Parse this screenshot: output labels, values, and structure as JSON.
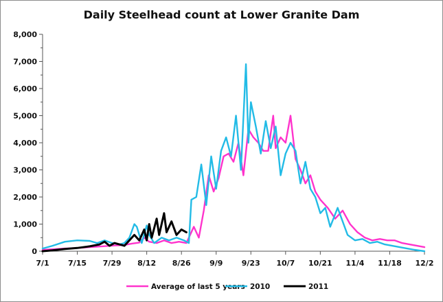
{
  "chart_data": {
    "type": "line",
    "title": "Daily Steelhead count at Lower Granite Dam",
    "xlabel": "",
    "ylabel": "",
    "x_tick_labels": [
      "7/1",
      "7/15",
      "7/29",
      "8/12",
      "8/26",
      "9/9",
      "9/23",
      "10/7",
      "10/21",
      "11/4",
      "11/18",
      "12/2"
    ],
    "xlim": [
      "7/1",
      "12/2"
    ],
    "ylim": [
      0,
      8000
    ],
    "y_ticks": [
      0,
      1000,
      2000,
      3000,
      4000,
      5000,
      6000,
      7000,
      8000
    ],
    "y_tick_labels": [
      "0",
      "1,000",
      "2,000",
      "3,000",
      "4,000",
      "5,000",
      "6,000",
      "7,000",
      "8,000"
    ],
    "grid": false,
    "legend": "bottom",
    "series": [
      {
        "name": "Average of last 5 years",
        "color": "#ff33cc",
        "points": [
          [
            "7/1",
            50
          ],
          [
            "7/5",
            70
          ],
          [
            "7/10",
            100
          ],
          [
            "7/15",
            120
          ],
          [
            "7/20",
            150
          ],
          [
            "7/25",
            180
          ],
          [
            "7/30",
            210
          ],
          [
            "8/3",
            230
          ],
          [
            "8/6",
            280
          ],
          [
            "8/9",
            320
          ],
          [
            "8/11",
            500
          ],
          [
            "8/13",
            350
          ],
          [
            "8/16",
            300
          ],
          [
            "8/19",
            400
          ],
          [
            "8/22",
            300
          ],
          [
            "8/25",
            350
          ],
          [
            "8/28",
            300
          ],
          [
            "8/31",
            900
          ],
          [
            "9/2",
            500
          ],
          [
            "9/4",
            1500
          ],
          [
            "9/6",
            2800
          ],
          [
            "9/8",
            2200
          ],
          [
            "9/10",
            2700
          ],
          [
            "9/12",
            3500
          ],
          [
            "9/14",
            3600
          ],
          [
            "9/16",
            3300
          ],
          [
            "9/18",
            4000
          ],
          [
            "9/20",
            2800
          ],
          [
            "9/22",
            4500
          ],
          [
            "9/24",
            4200
          ],
          [
            "9/26",
            4000
          ],
          [
            "9/28",
            3700
          ],
          [
            "9/30",
            3700
          ],
          [
            "10/2",
            5000
          ],
          [
            "10/3",
            3800
          ],
          [
            "10/5",
            4200
          ],
          [
            "10/7",
            4000
          ],
          [
            "10/9",
            5000
          ],
          [
            "10/11",
            3400
          ],
          [
            "10/13",
            3000
          ],
          [
            "10/15",
            2500
          ],
          [
            "10/17",
            2800
          ],
          [
            "10/19",
            2200
          ],
          [
            "10/21",
            1900
          ],
          [
            "10/24",
            1600
          ],
          [
            "10/27",
            1200
          ],
          [
            "10/30",
            1500
          ],
          [
            "11/2",
            1000
          ],
          [
            "11/5",
            700
          ],
          [
            "11/8",
            500
          ],
          [
            "11/11",
            400
          ],
          [
            "11/14",
            450
          ],
          [
            "11/17",
            400
          ],
          [
            "11/20",
            400
          ],
          [
            "11/23",
            300
          ],
          [
            "11/26",
            250
          ],
          [
            "11/29",
            200
          ],
          [
            "12/2",
            150
          ]
        ]
      },
      {
        "name": "2010",
        "color": "#22bbe6",
        "points": [
          [
            "7/1",
            100
          ],
          [
            "7/5",
            200
          ],
          [
            "7/10",
            350
          ],
          [
            "7/15",
            400
          ],
          [
            "7/20",
            380
          ],
          [
            "7/23",
            300
          ],
          [
            "7/26",
            400
          ],
          [
            "7/29",
            300
          ],
          [
            "8/1",
            250
          ],
          [
            "8/3",
            300
          ],
          [
            "8/5",
            500
          ],
          [
            "8/7",
            1000
          ],
          [
            "8/8",
            900
          ],
          [
            "8/10",
            300
          ],
          [
            "8/12",
            950
          ],
          [
            "8/13",
            600
          ],
          [
            "8/15",
            300
          ],
          [
            "8/18",
            500
          ],
          [
            "8/21",
            400
          ],
          [
            "8/24",
            500
          ],
          [
            "8/27",
            400
          ],
          [
            "8/29",
            300
          ],
          [
            "8/30",
            1900
          ],
          [
            "9/1",
            2000
          ],
          [
            "9/3",
            3200
          ],
          [
            "9/5",
            1700
          ],
          [
            "9/7",
            3500
          ],
          [
            "9/9",
            2300
          ],
          [
            "9/11",
            3700
          ],
          [
            "9/13",
            4200
          ],
          [
            "9/15",
            3500
          ],
          [
            "9/17",
            5000
          ],
          [
            "9/19",
            3000
          ],
          [
            "9/21",
            6900
          ],
          [
            "9/22",
            4000
          ],
          [
            "9/23",
            5500
          ],
          [
            "9/25",
            4600
          ],
          [
            "9/27",
            3600
          ],
          [
            "9/29",
            4800
          ],
          [
            "10/1",
            3800
          ],
          [
            "10/3",
            4600
          ],
          [
            "10/5",
            2800
          ],
          [
            "10/7",
            3600
          ],
          [
            "10/9",
            4000
          ],
          [
            "10/11",
            3700
          ],
          [
            "10/13",
            2500
          ],
          [
            "10/15",
            3300
          ],
          [
            "10/17",
            2300
          ],
          [
            "10/19",
            2000
          ],
          [
            "10/21",
            1400
          ],
          [
            "10/23",
            1600
          ],
          [
            "10/25",
            900
          ],
          [
            "10/28",
            1600
          ],
          [
            "11/1",
            600
          ],
          [
            "11/4",
            400
          ],
          [
            "11/7",
            450
          ],
          [
            "11/10",
            300
          ],
          [
            "11/13",
            350
          ],
          [
            "11/16",
            250
          ],
          [
            "11/19",
            200
          ],
          [
            "11/22",
            150
          ],
          [
            "11/25",
            100
          ],
          [
            "11/28",
            50
          ],
          [
            "12/2",
            0
          ]
        ]
      },
      {
        "name": "2011",
        "color": "#000000",
        "points": [
          [
            "7/1",
            0
          ],
          [
            "7/5",
            30
          ],
          [
            "7/10",
            80
          ],
          [
            "7/15",
            120
          ],
          [
            "7/20",
            180
          ],
          [
            "7/24",
            250
          ],
          [
            "7/26",
            350
          ],
          [
            "7/28",
            200
          ],
          [
            "7/30",
            300
          ],
          [
            "8/1",
            250
          ],
          [
            "8/3",
            200
          ],
          [
            "8/5",
            400
          ],
          [
            "8/7",
            600
          ],
          [
            "8/9",
            400
          ],
          [
            "8/11",
            800
          ],
          [
            "8/12",
            400
          ],
          [
            "8/13",
            1000
          ],
          [
            "8/14",
            500
          ],
          [
            "8/16",
            1200
          ],
          [
            "8/17",
            600
          ],
          [
            "8/19",
            1400
          ],
          [
            "8/20",
            700
          ],
          [
            "8/22",
            1100
          ],
          [
            "8/24",
            600
          ],
          [
            "8/26",
            800
          ],
          [
            "8/28",
            700
          ]
        ]
      }
    ]
  }
}
